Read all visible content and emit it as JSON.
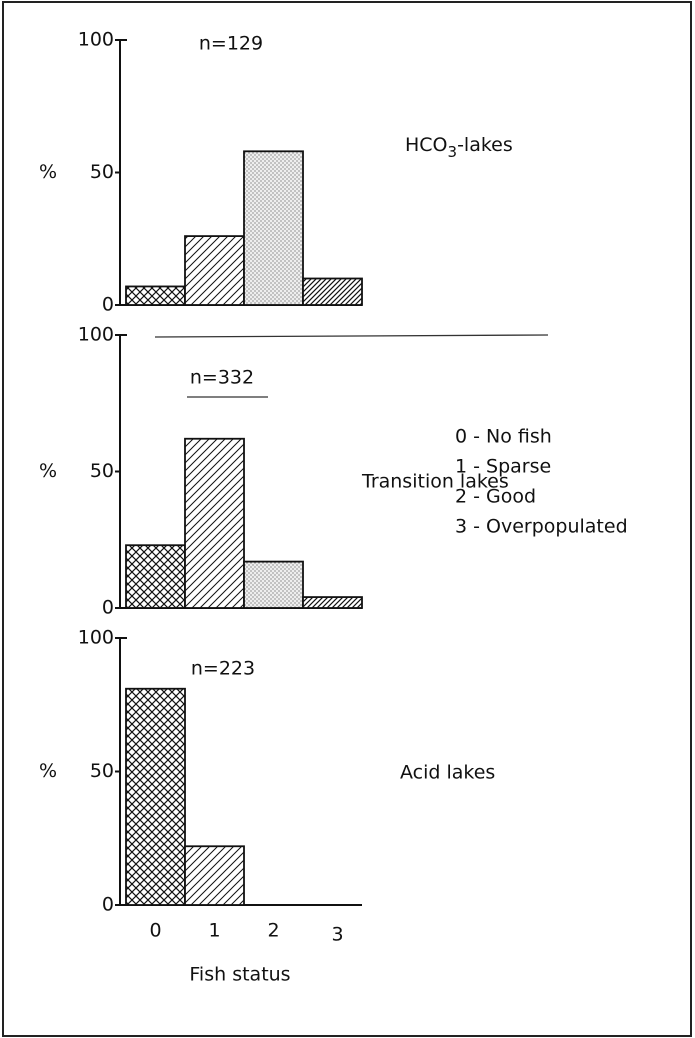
{
  "chart_data": [
    {
      "type": "bar",
      "ylabel": "%",
      "categories": [
        null,
        null,
        null,
        null
      ],
      "values": [
        7,
        26,
        58,
        10
      ],
      "ylim": [
        0,
        100
      ],
      "yticks": [
        0,
        50,
        100
      ],
      "patterns": [
        "crosshatch",
        "hatch",
        "dots",
        "hatch-dense"
      ],
      "annotations": [
        "n=129",
        "HCO3-lakes"
      ]
    },
    {
      "type": "bar",
      "ylabel": "%",
      "categories": [
        null,
        null,
        null,
        null
      ],
      "values": [
        23,
        62,
        17,
        4
      ],
      "ylim": [
        0,
        100
      ],
      "yticks": [
        0,
        50,
        100
      ],
      "patterns": [
        "crosshatch",
        "hatch",
        "dots",
        "hatch-dense"
      ],
      "annotations": [
        "n=332",
        "Transition lakes"
      ],
      "legend": [
        "0 - No fish",
        "1 - Sparse",
        "2 - Good",
        "3 - Overpopulated"
      ]
    },
    {
      "type": "bar",
      "ylabel": "%",
      "xlabel": "Fish status",
      "categories": [
        "0",
        "1",
        "2",
        "3"
      ],
      "values": [
        81,
        22,
        0,
        0
      ],
      "ylim": [
        0,
        100
      ],
      "yticks": [
        0,
        50,
        100
      ],
      "patterns": [
        "crosshatch",
        "hatch",
        "dots",
        "hatch-dense"
      ],
      "annotations": [
        "n=223",
        "Acid lakes"
      ]
    }
  ]
}
